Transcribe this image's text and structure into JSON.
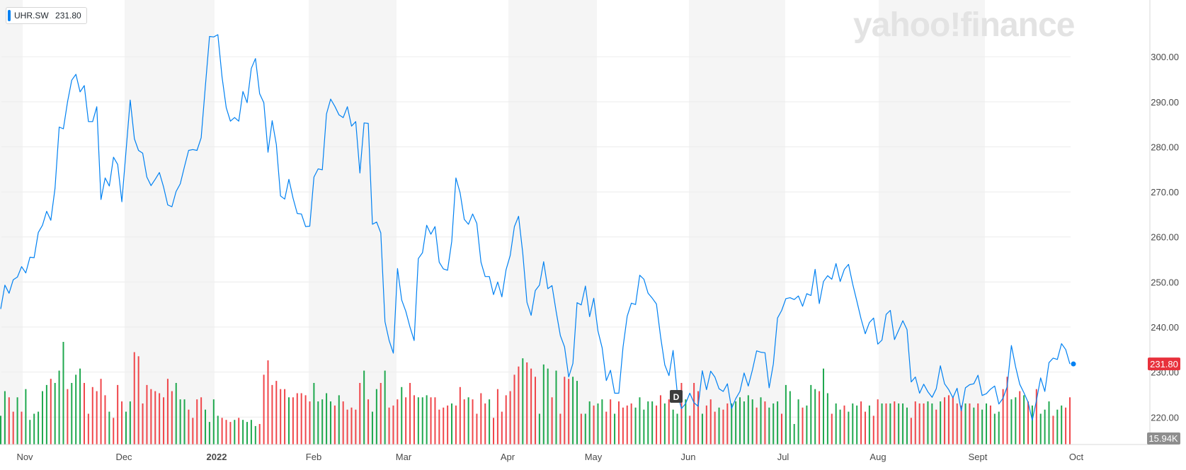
{
  "ticker": {
    "symbol": "UHR.SW",
    "last_price": "231.80"
  },
  "watermark": "yahoo!finance",
  "price_badge": "231.80",
  "volume_badge": "15.94K",
  "dividend_marker": "D",
  "colors": {
    "line": "#0081f2",
    "up_volume": "#1fa84e",
    "down_volume": "#f0464a",
    "price_badge_bg": "#e8313c",
    "volume_badge_bg": "#8e8e8e",
    "band": "#f5f5f5",
    "grid": "#ececec",
    "axis_text": "#4a4a4a"
  },
  "chart_data": {
    "type": "line",
    "series": [
      {
        "name": "UHR.SW",
        "values": [
          244.0,
          249.3,
          247.5,
          250.5,
          251.1,
          253.4,
          252.0,
          255.5,
          255.4,
          261.0,
          262.6,
          265.7,
          263.7,
          270.8,
          284.4,
          284.0,
          290.0,
          294.8,
          296.1,
          292.2,
          293.6,
          285.6,
          285.6,
          288.9,
          268.3,
          273.1,
          271.3,
          277.7,
          276.1,
          267.8,
          279.1,
          290.4,
          281.8,
          279.2,
          278.6,
          273.3,
          271.4,
          272.8,
          274.3,
          271.1,
          267.1,
          266.7,
          270.1,
          271.8,
          275.6,
          279.2,
          279.4,
          279.2,
          282.0,
          293.4,
          304.5,
          304.4,
          304.9,
          295.5,
          288.7,
          285.7,
          286.5,
          285.7,
          292.3,
          289.8,
          297.4,
          299.6,
          291.8,
          289.8,
          278.8,
          285.8,
          280.5,
          269.1,
          268.4,
          272.8,
          268.6,
          265.2,
          265.1,
          262.3,
          262.4,
          273.3,
          275.1,
          274.9,
          287.3,
          290.6,
          289.0,
          287.1,
          286.5,
          288.9,
          284.6,
          285.6,
          274.2,
          285.3,
          285.2,
          262.8,
          263.3,
          260.9,
          241.2,
          237.0,
          234.2,
          253.0,
          246.0,
          243.5,
          240.0,
          237.0,
          255.2,
          256.5,
          262.6,
          260.6,
          262.3,
          254.4,
          252.9,
          252.6,
          259.0,
          273.1,
          269.8,
          263.9,
          262.8,
          265.1,
          263.0,
          254.4,
          251.2,
          251.2,
          247.2,
          250.0,
          246.7,
          252.7,
          255.9,
          262.3,
          264.6,
          256.4,
          245.5,
          242.6,
          248.1,
          249.3,
          254.5,
          248.5,
          249.2,
          243.4,
          238.1,
          235.6,
          228.9,
          231.9,
          245.4,
          244.9,
          249.1,
          242.3,
          246.4,
          239.1,
          235.4,
          228.1,
          230.4,
          225.3,
          225.3,
          235.5,
          242.4,
          245.3,
          245.0,
          251.5,
          250.6,
          247.5,
          246.4,
          245.1,
          237.8,
          231.6,
          229.2,
          234.8,
          225.4,
          221.9,
          223.0,
          225.3,
          223.2,
          222.4,
          230.3,
          226.1,
          230.2,
          228.9,
          226.3,
          225.7,
          227.4,
          221.9,
          224.1,
          225.7,
          229.8,
          226.9,
          230.5,
          234.7,
          234.4,
          234.3,
          226.5,
          231.8,
          242.0,
          243.7,
          246.3,
          246.5,
          246.1,
          246.9,
          244.6,
          247.4,
          247.0,
          252.8,
          245.2,
          250.1,
          251.4,
          250.6,
          254.1,
          250.1,
          252.8,
          253.9,
          249.5,
          245.7,
          241.8,
          238.5,
          241.0,
          242.0,
          236.2,
          237.1,
          242.8,
          243.7,
          237.2,
          239.3,
          241.4,
          239.4,
          227.8,
          228.9,
          225.3,
          227.3,
          225.6,
          224.4,
          226.3,
          231.4,
          227.4,
          226.1,
          224.3,
          226.4,
          221.4,
          226.5,
          227.2,
          227.4,
          229.3,
          224.8,
          225.2,
          226.2,
          226.9,
          222.9,
          224.2,
          226.8,
          235.9,
          231.2,
          227.3,
          225.4,
          223.3,
          219.3,
          223.7,
          228.7,
          225.7,
          232.1,
          233.1,
          232.8,
          236.3,
          235.0,
          231.8
        ]
      }
    ],
    "volume": {
      "values": [
        14,
        26,
        23,
        16,
        23,
        16,
        27,
        12,
        15,
        16,
        26,
        29,
        32,
        30,
        36,
        50,
        27,
        30,
        34,
        37,
        30,
        15,
        28,
        26,
        32,
        24,
        16,
        13,
        29,
        21,
        16,
        21,
        45,
        43,
        20,
        29,
        27,
        26,
        25,
        23,
        32,
        26,
        30,
        22,
        22,
        17,
        13,
        22,
        23,
        17,
        11,
        22,
        14,
        13,
        12,
        11,
        12,
        13,
        12,
        11,
        12,
        9,
        10,
        34,
        41,
        29,
        31,
        27,
        27,
        23,
        23,
        25,
        25,
        24,
        21,
        30,
        21,
        22,
        25,
        21,
        19,
        24,
        21,
        17,
        18,
        17,
        30,
        36,
        22,
        16,
        27,
        30,
        36,
        18,
        19,
        22,
        28,
        23,
        30,
        24,
        23,
        23,
        24,
        23,
        23,
        17,
        18,
        19,
        20,
        19,
        28,
        22,
        23,
        22,
        15,
        25,
        20,
        22,
        13,
        27,
        16,
        24,
        26,
        34,
        38,
        42,
        40,
        37,
        33,
        15,
        39,
        37,
        23,
        36,
        15,
        33,
        32,
        33,
        31,
        15,
        15,
        21,
        19,
        20,
        22,
        16,
        22,
        15,
        21,
        18,
        19,
        20,
        18,
        23,
        17,
        21,
        21,
        19,
        24,
        20,
        22,
        17,
        15,
        30,
        22,
        14,
        30,
        26,
        15,
        19,
        22,
        16,
        18,
        17,
        20,
        20,
        21,
        23,
        21,
        24,
        22,
        18,
        23,
        21,
        18,
        20,
        21,
        15,
        29,
        26,
        10,
        22,
        18,
        19,
        29,
        27,
        26,
        37,
        25,
        15,
        20,
        17,
        19,
        16,
        20,
        19,
        21,
        16,
        19,
        14,
        22,
        20,
        20,
        20,
        21,
        20,
        20,
        18,
        13,
        21,
        20,
        20,
        21,
        20,
        17,
        21,
        23,
        24,
        23,
        20,
        19,
        20,
        20,
        18,
        20,
        17,
        20,
        19,
        15,
        16,
        27,
        33,
        22,
        23,
        26,
        24,
        21,
        19,
        27,
        15,
        17,
        21,
        14,
        17,
        19,
        18,
        23,
        18,
        15,
        22,
        21,
        13,
        21,
        15,
        23,
        18,
        22,
        19,
        19,
        14,
        21,
        21,
        18,
        17,
        23,
        24,
        20,
        17,
        24,
        19,
        21,
        15,
        17,
        22,
        19
      ],
      "up": [
        1,
        1,
        0,
        0,
        1,
        0,
        1,
        1,
        1,
        1,
        1,
        1,
        0,
        1,
        1,
        1,
        0,
        1,
        1,
        1,
        0,
        0,
        0,
        0,
        0,
        0,
        1,
        0,
        0,
        0,
        1,
        1,
        0,
        0,
        0,
        0,
        0,
        0,
        0,
        0,
        0,
        0,
        1,
        1,
        1,
        0,
        0,
        0,
        0,
        1,
        1,
        1,
        1,
        0,
        0,
        0,
        1,
        0,
        1,
        1,
        1,
        1,
        0,
        0,
        0,
        0,
        0,
        0,
        0,
        1,
        0,
        0,
        0,
        0,
        0,
        1,
        1,
        1,
        1,
        1,
        0,
        1,
        0,
        0,
        0,
        0,
        0,
        1,
        0,
        1,
        1,
        0,
        1,
        0,
        0,
        0,
        1,
        0,
        0,
        0,
        1,
        1,
        1,
        0,
        0,
        0,
        0,
        0,
        1,
        0,
        0,
        0,
        1,
        0,
        0,
        0,
        0,
        1,
        0,
        0,
        0,
        0,
        0,
        0,
        0,
        1,
        0,
        0,
        0,
        1,
        1,
        1,
        0,
        1,
        0,
        0,
        0,
        1,
        1,
        0,
        1,
        1,
        0,
        1,
        1,
        0,
        0,
        1,
        0,
        0,
        0,
        0,
        1,
        1,
        1,
        1,
        1,
        0,
        0,
        1,
        0,
        1,
        1,
        0,
        1,
        0,
        0,
        0,
        1,
        0,
        0,
        0,
        1,
        0,
        0,
        1,
        1,
        1,
        1,
        1,
        1,
        0,
        1,
        0,
        1,
        1,
        1,
        0,
        1,
        1,
        1,
        1,
        0,
        1,
        1,
        1,
        0,
        1,
        1,
        0,
        1,
        1,
        0,
        1,
        1,
        1,
        0,
        0,
        1,
        0,
        0,
        1,
        0,
        1,
        0,
        1,
        1,
        1,
        0,
        0,
        0,
        0,
        1,
        1,
        0,
        1,
        0,
        0,
        0,
        0,
        0,
        1,
        0,
        1,
        0,
        1,
        1,
        0,
        1,
        1,
        0,
        0,
        1,
        1,
        0,
        1,
        0,
        1,
        0,
        1,
        1,
        1,
        0,
        1,
        1,
        0,
        0,
        1,
        0,
        0,
        1,
        0,
        0,
        1,
        1,
        1,
        0,
        1,
        1,
        0,
        0,
        1,
        0,
        1,
        1,
        0,
        0,
        1,
        0,
        0,
        1,
        0,
        0
      ]
    },
    "x_labels": [
      "Nov",
      "Dec",
      "2022",
      "Feb",
      "Mar",
      "Apr",
      "May",
      "Jun",
      "Jul",
      "Aug",
      "Sept",
      "Oct"
    ],
    "y_ticks": [
      "220.00",
      "230.00",
      "240.00",
      "250.00",
      "260.00",
      "270.00",
      "280.00",
      "290.00",
      "300.00"
    ],
    "ylim": [
      218,
      306
    ],
    "grid": true
  }
}
